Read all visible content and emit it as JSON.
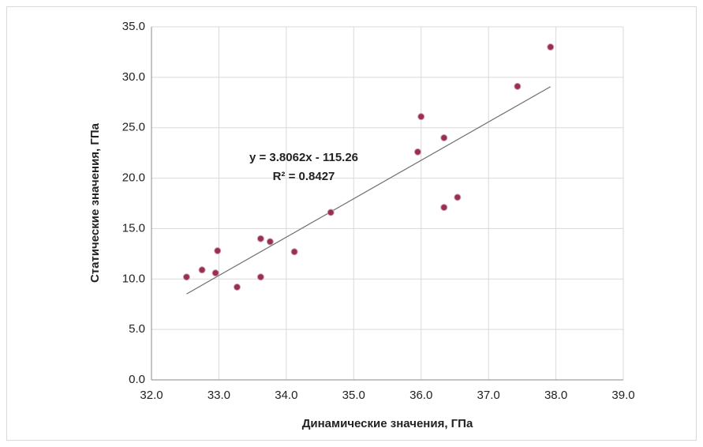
{
  "chart_data": {
    "type": "scatter",
    "x_label": "Динамические значения, ГПа",
    "y_label": "Статические значения, ГПа",
    "x": [
      32.52,
      32.75,
      32.95,
      32.98,
      33.27,
      33.62,
      33.62,
      33.76,
      34.12,
      34.66,
      35.95,
      36.0,
      36.34,
      36.34,
      36.54,
      37.43,
      37.92
    ],
    "series": [
      {
        "color": "#9b2d57",
        "values": [
          10.2,
          10.9,
          10.6,
          12.8,
          9.2,
          14.0,
          10.2,
          13.7,
          12.7,
          16.6,
          22.6,
          26.1,
          24.0,
          17.1,
          18.1,
          29.1,
          33.0
        ]
      }
    ],
    "trendline": {
      "color": "#6e6e6e",
      "slope": 3.8062,
      "intercept": -115.26,
      "equation": "y = 3.8062x - 115.26",
      "r_squared": 0.8427,
      "r_squared_label": "R² = 0.8427"
    },
    "xlim": [
      32,
      39
    ],
    "xticks": [
      {
        "value": 32,
        "label": "32.0"
      },
      {
        "value": 33,
        "label": "33.0"
      },
      {
        "value": 34,
        "label": "34.0"
      },
      {
        "value": 35,
        "label": "35.0"
      },
      {
        "value": 36,
        "label": "36.0"
      },
      {
        "value": 37,
        "label": "37.0"
      },
      {
        "value": 38,
        "label": "38.0"
      },
      {
        "value": 39,
        "label": "39.0"
      }
    ],
    "ylim": [
      0,
      35
    ],
    "yticks": [
      {
        "value": 0,
        "label": "0.0"
      },
      {
        "value": 5,
        "label": "5.0"
      },
      {
        "value": 10,
        "label": "10.0"
      },
      {
        "value": 15,
        "label": "15.0"
      },
      {
        "value": 20,
        "label": "20.0"
      },
      {
        "value": 25,
        "label": "25.0"
      },
      {
        "value": 30,
        "label": "30.0"
      },
      {
        "value": 35,
        "label": "35.0"
      }
    ],
    "grid": true
  }
}
